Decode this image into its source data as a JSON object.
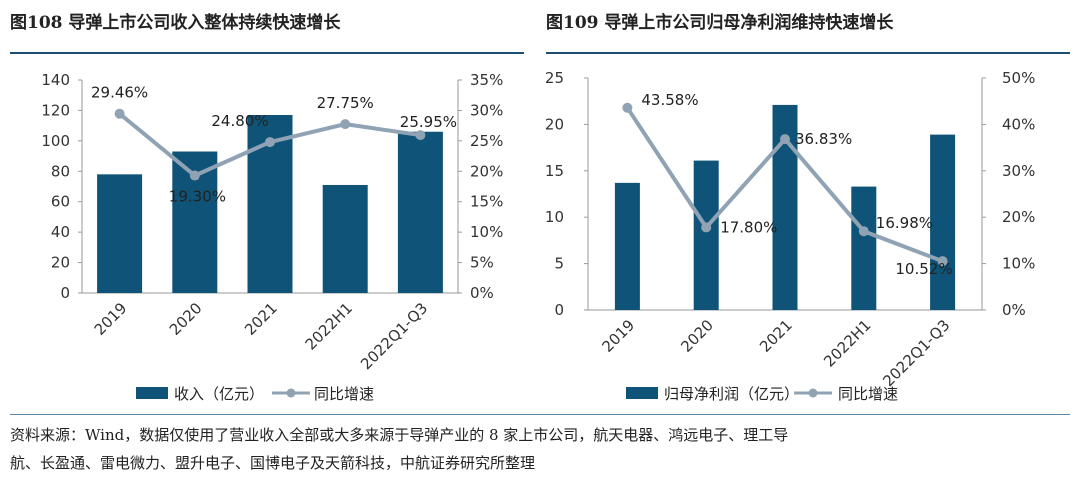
{
  "colors": {
    "bar": "#0f5478",
    "line": "#8fa3b5",
    "rule": "#1b4f72"
  },
  "charts": [
    {
      "title": "图108  导弹上市公司收入整体持续快速增长",
      "bar_legend": "收入（亿元）",
      "line_legend": "同比增速",
      "left_ticks": [
        "0",
        "20",
        "40",
        "60",
        "80",
        "100",
        "120",
        "140"
      ],
      "right_ticks": [
        "0%",
        "5%",
        "10%",
        "15%",
        "20%",
        "25%",
        "30%",
        "35%"
      ],
      "categories": [
        "2019",
        "2020",
        "2021",
        "2022H1",
        "2022Q1-Q3"
      ],
      "growth_labels": [
        "29.46%",
        "19.30%",
        "24.80%",
        "27.75%",
        "25.95%"
      ]
    },
    {
      "title": "图109  导弹上市公司归母净利润维持快速增长",
      "bar_legend": "归母净利润（亿元）",
      "line_legend": "同比增速",
      "left_ticks": [
        "0",
        "5",
        "10",
        "15",
        "20",
        "25"
      ],
      "right_ticks": [
        "0%",
        "10%",
        "20%",
        "30%",
        "40%",
        "50%"
      ],
      "categories": [
        "2019",
        "2020",
        "2021",
        "2022H1",
        "2022Q1-Q3"
      ],
      "growth_labels": [
        "43.58%",
        "17.80%",
        "36.83%",
        "16.98%",
        "10.52%"
      ]
    }
  ],
  "chart_data": [
    {
      "type": "bar",
      "title": "图108  导弹上市公司收入整体持续快速增长",
      "categories": [
        "2019",
        "2020",
        "2021",
        "2022H1",
        "2022Q1-Q3"
      ],
      "series": [
        {
          "name": "收入（亿元）",
          "type": "bar",
          "axis": "left",
          "values": [
            78,
            93,
            117,
            71,
            106
          ]
        },
        {
          "name": "同比增速",
          "type": "line",
          "axis": "right",
          "values": [
            29.46,
            19.3,
            24.8,
            27.75,
            25.95
          ]
        }
      ],
      "ylim_left": [
        0,
        140
      ],
      "ylim_right": [
        0,
        35
      ],
      "grid": false,
      "legend": "bottom"
    },
    {
      "type": "bar",
      "title": "图109  导弹上市公司归母净利润维持快速增长",
      "categories": [
        "2019",
        "2020",
        "2021",
        "2022H1",
        "2022Q1-Q3"
      ],
      "series": [
        {
          "name": "归母净利润（亿元）",
          "type": "bar",
          "axis": "left",
          "values": [
            13.7,
            16.1,
            22.1,
            13.3,
            18.9
          ]
        },
        {
          "name": "同比增速",
          "type": "line",
          "axis": "right",
          "values": [
            43.58,
            17.8,
            36.83,
            16.98,
            10.52
          ]
        }
      ],
      "ylim_left": [
        0,
        25
      ],
      "ylim_right": [
        0,
        50
      ],
      "grid": false,
      "legend": "bottom"
    }
  ],
  "footer": {
    "source_line1": "资料来源：Wind，数据仅使用了营业收入全部或大多来源于导弹产业的 8 家上市公司，航天电器、鸿远电子、理工导",
    "source_line2": "航、长盈通、雷电微力、盟升电子、国博电子及天箭科技，中航证券研究所整理"
  }
}
